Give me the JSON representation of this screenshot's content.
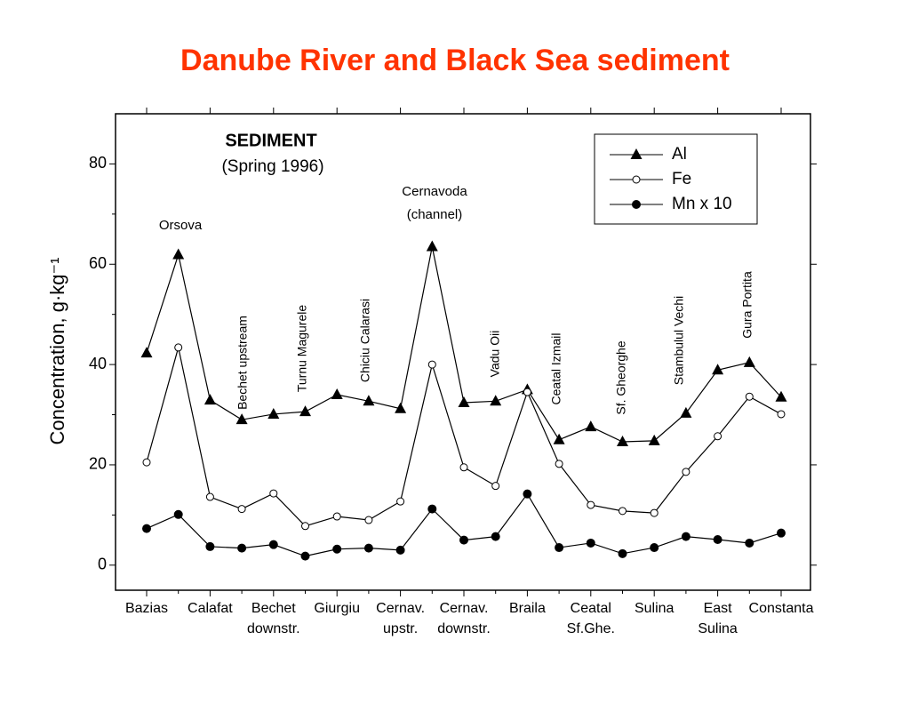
{
  "chart_data": {
    "type": "line",
    "title": "Danube River and Black Sea sediment",
    "subtitle": "SEDIMENT",
    "note": "(Spring 1996)",
    "y_label": "Concentration,  g·kg⁻¹",
    "categories": [
      "Bazias",
      "Orsova",
      "Calafat",
      "Bechet upstream",
      "Bechet downstr.",
      "Turnu Magurele",
      "Giurgiu",
      "Chiciu Calarasi",
      "Cernav. upstr.",
      "Cernavoda (channel)",
      "Cernav. downstr.",
      "Vadu Oii",
      "Braila",
      "Ceatal Izmail",
      "Ceatal Sf.Ghe.",
      "Sf. Gheorghe",
      "Sulina",
      "Stambulul Vechi",
      "East Sulina",
      "Gura Portita",
      "Constanta"
    ],
    "series": [
      {
        "name": "Al",
        "color": "#000000",
        "marker": "triangle",
        "values": [
          42.3,
          61.9,
          32.9,
          29,
          30.1,
          30.6,
          34,
          32.7,
          31.2,
          63.5,
          32.4,
          32.7,
          35,
          25,
          27.6,
          24.6,
          24.8,
          30.3,
          38.9,
          40.4,
          33.5
        ]
      },
      {
        "name": "Fe",
        "color": "#000000",
        "marker": "open-circle",
        "values": [
          20.5,
          43.4,
          13.6,
          11.2,
          14.3,
          7.8,
          9.7,
          9,
          12.7,
          40,
          19.5,
          15.8,
          34.5,
          20.2,
          12,
          10.8,
          10.4,
          18.6,
          25.7,
          33.6,
          30.1
        ]
      },
      {
        "name": "Mn x 10",
        "color": "#000000",
        "marker": "circle",
        "values": [
          7.3,
          10.1,
          3.7,
          3.4,
          4.1,
          1.8,
          3.2,
          3.4,
          3,
          11.2,
          5,
          5.7,
          14.2,
          3.5,
          4.4,
          2.3,
          3.5,
          5.7,
          5.1,
          4.4,
          6.4
        ]
      }
    ],
    "ylim": [
      -5,
      90
    ],
    "yticks": [
      0,
      20,
      40,
      60,
      80
    ],
    "title_color": "#ff3300",
    "legend": "upper right"
  }
}
